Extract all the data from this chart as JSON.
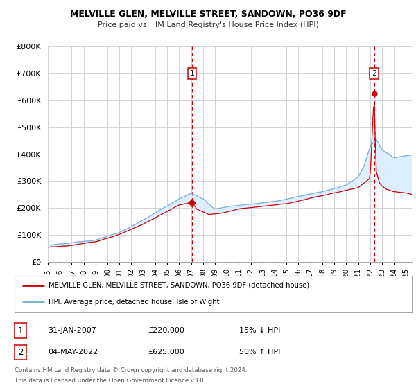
{
  "title": "MELVILLE GLEN, MELVILLE STREET, SANDOWN, PO36 9DF",
  "subtitle": "Price paid vs. HM Land Registry's House Price Index (HPI)",
  "legend_label_red": "MELVILLE GLEN, MELVILLE STREET, SANDOWN, PO36 9DF (detached house)",
  "legend_label_blue": "HPI: Average price, detached house, Isle of Wight",
  "annotation1_date": "31-JAN-2007",
  "annotation1_price": "£220,000",
  "annotation1_pct": "15% ↓ HPI",
  "annotation2_date": "04-MAY-2022",
  "annotation2_price": "£625,000",
  "annotation2_pct": "50% ↑ HPI",
  "footer1": "Contains HM Land Registry data © Crown copyright and database right 2024.",
  "footer2": "This data is licensed under the Open Government Licence v3.0.",
  "ylim": [
    0,
    800000
  ],
  "yticks": [
    0,
    100000,
    200000,
    300000,
    400000,
    500000,
    600000,
    700000,
    800000
  ],
  "ytick_labels": [
    "£0",
    "£100K",
    "£200K",
    "£300K",
    "£400K",
    "£500K",
    "£600K",
    "£700K",
    "£800K"
  ],
  "red_color": "#cc0000",
  "blue_color": "#7ab0d4",
  "fill_color": "#ddeeff",
  "vline_color": "#cc0000",
  "dot_color": "#cc0000",
  "background_color": "#ffffff",
  "grid_color": "#cccccc",
  "xlim_start": 1995.0,
  "xlim_end": 2025.5,
  "point1_x": 2007.083,
  "point1_y": 220000,
  "point2_x": 2022.338,
  "point2_y": 625000,
  "title_fontsize": 9,
  "subtitle_fontsize": 8,
  "tick_fontsize": 7.5,
  "ytick_fontsize": 8
}
